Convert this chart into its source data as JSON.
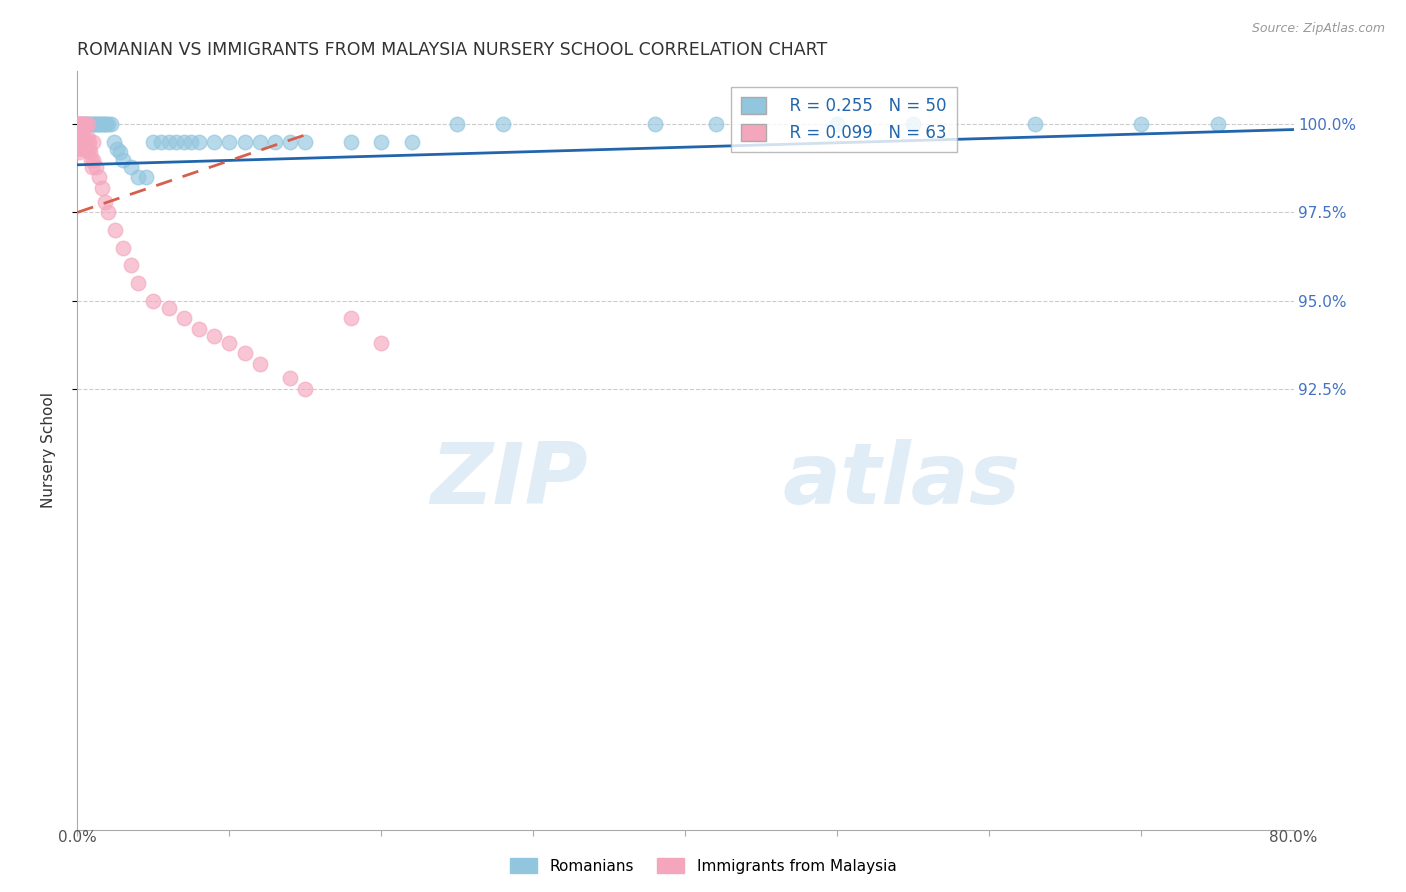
{
  "title": "ROMANIAN VS IMMIGRANTS FROM MALAYSIA NURSERY SCHOOL CORRELATION CHART",
  "source": "Source: ZipAtlas.com",
  "ylabel": "Nursery School",
  "xlim": [
    0.0,
    80.0
  ],
  "ylim": [
    80.0,
    101.5
  ],
  "legend_blue_r": "R = 0.255",
  "legend_blue_n": "N = 50",
  "legend_pink_r": "R = 0.099",
  "legend_pink_n": "N = 63",
  "blue_color": "#92c5de",
  "pink_color": "#f4a6bd",
  "blue_line_color": "#2166ac",
  "pink_line_color": "#d6604d",
  "watermark_zip": "ZIP",
  "watermark_atlas": "atlas",
  "yticks": [
    92.5,
    95.0,
    97.5,
    100.0
  ],
  "ytick_labels": [
    "92.5%",
    "95.0%",
    "97.5%",
    "100.0%"
  ],
  "blue_scatter_x": [
    0.5,
    0.6,
    0.7,
    0.8,
    0.9,
    1.0,
    1.1,
    1.2,
    1.3,
    1.4,
    1.5,
    1.6,
    1.7,
    1.8,
    1.9,
    2.0,
    2.2,
    2.4,
    2.6,
    2.8,
    3.0,
    3.5,
    4.0,
    4.5,
    5.0,
    5.5,
    6.0,
    6.5,
    7.0,
    7.5,
    8.0,
    9.0,
    10.0,
    11.0,
    12.0,
    13.0,
    14.0,
    15.0,
    18.0,
    20.0,
    22.0,
    25.0,
    28.0,
    38.0,
    42.0,
    50.0,
    55.0,
    63.0,
    70.0,
    75.0
  ],
  "blue_scatter_y": [
    100.0,
    100.0,
    100.0,
    100.0,
    100.0,
    100.0,
    100.0,
    100.0,
    100.0,
    100.0,
    100.0,
    100.0,
    100.0,
    100.0,
    100.0,
    100.0,
    100.0,
    99.5,
    99.3,
    99.2,
    99.0,
    98.8,
    98.5,
    98.5,
    99.5,
    99.5,
    99.5,
    99.5,
    99.5,
    99.5,
    99.5,
    99.5,
    99.5,
    99.5,
    99.5,
    99.5,
    99.5,
    99.5,
    99.5,
    99.5,
    99.5,
    100.0,
    100.0,
    100.0,
    100.0,
    100.0,
    100.0,
    100.0,
    100.0,
    100.0
  ],
  "pink_scatter_x": [
    0.05,
    0.05,
    0.05,
    0.05,
    0.05,
    0.1,
    0.1,
    0.1,
    0.1,
    0.1,
    0.15,
    0.15,
    0.15,
    0.2,
    0.2,
    0.2,
    0.25,
    0.25,
    0.3,
    0.3,
    0.3,
    0.35,
    0.35,
    0.4,
    0.4,
    0.45,
    0.5,
    0.5,
    0.5,
    0.55,
    0.6,
    0.6,
    0.65,
    0.7,
    0.7,
    0.75,
    0.8,
    0.85,
    0.9,
    0.95,
    1.0,
    1.0,
    1.2,
    1.4,
    1.6,
    1.8,
    2.0,
    2.5,
    3.0,
    3.5,
    4.0,
    5.0,
    6.0,
    7.0,
    8.0,
    9.0,
    10.0,
    11.0,
    12.0,
    14.0,
    15.0,
    18.0,
    20.0
  ],
  "pink_scatter_y": [
    100.0,
    100.0,
    99.8,
    99.5,
    99.3,
    100.0,
    99.8,
    99.6,
    99.4,
    99.2,
    100.0,
    99.7,
    99.4,
    100.0,
    99.7,
    99.4,
    100.0,
    99.5,
    100.0,
    99.7,
    99.4,
    100.0,
    99.5,
    100.0,
    99.5,
    99.3,
    100.0,
    99.6,
    99.3,
    99.5,
    100.0,
    99.5,
    99.3,
    100.0,
    99.6,
    99.3,
    99.5,
    99.2,
    99.0,
    98.8,
    99.5,
    99.0,
    98.8,
    98.5,
    98.2,
    97.8,
    97.5,
    97.0,
    96.5,
    96.0,
    95.5,
    95.0,
    94.8,
    94.5,
    94.2,
    94.0,
    93.8,
    93.5,
    93.2,
    92.8,
    92.5,
    94.5,
    93.8
  ]
}
